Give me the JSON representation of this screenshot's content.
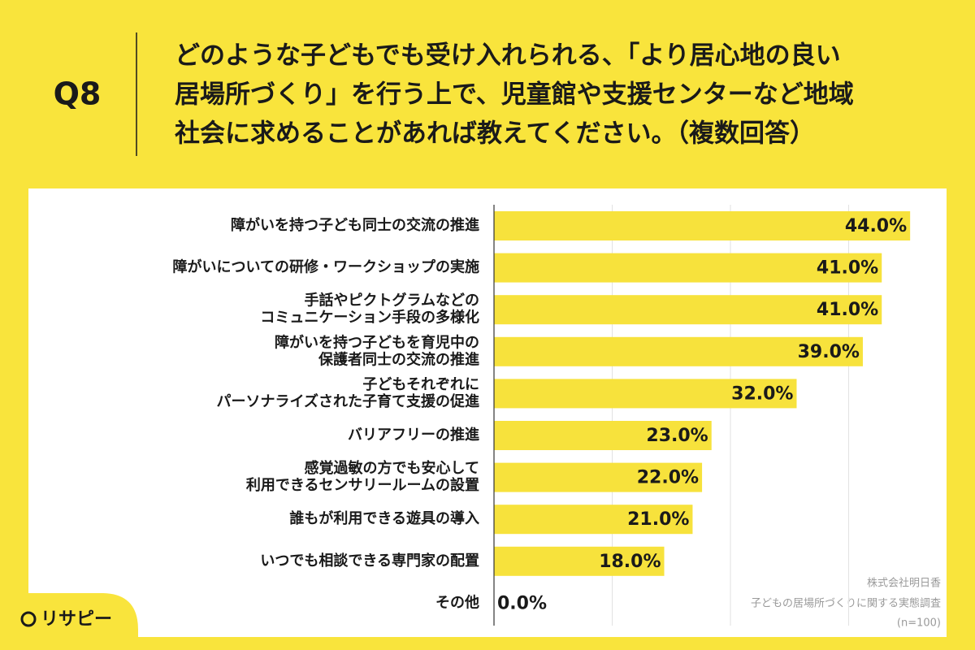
{
  "header": {
    "question": "Q8",
    "title": [
      "どのような子どもでも受け入れられる、「より居心地の良い",
      "居場所づくり」を行う上で、児童館や支援センターなど地域",
      "社会に求めることがあれば教えてください。（複数回答）"
    ]
  },
  "chart_data": {
    "type": "barh",
    "categories": [
      "障がいを持つ子ども同士の交流の推進",
      "障がいについての研修・ワークショップの実施",
      "手話やピクトグラムなどの\nコミュニケーション手段の多様化",
      "障がいを持つ子どもを育児中の\n保護者同士の交流の推進",
      "子どもそれぞれに\nパーソナライズされた子育て支援の促進",
      "バリアフリーの推進",
      "感覚過敏の方でも安心して\n利用できるセンサリールームの設置",
      "誰もが利用できる遊具の導入",
      "いつでも相談できる専門家の配置",
      "その他"
    ],
    "values": [
      44,
      41,
      41,
      39,
      32,
      23,
      22,
      21,
      18,
      0
    ],
    "value_labels": [
      "44.0%",
      "41.0%",
      "41.0%",
      "39.0%",
      "32.0%",
      "23.0%",
      "22.0%",
      "21.0%",
      "18.0%",
      "0.0%"
    ],
    "color": "#f7e23c",
    "xlim": [
      0,
      50
    ],
    "xticks": [
      12.5,
      25,
      37.5
    ],
    "grid": true
  },
  "source": [
    "株式会社明日香",
    "子どもの居場所づくりに関する実態調査",
    "(n=100)"
  ],
  "logo": "リサピー"
}
